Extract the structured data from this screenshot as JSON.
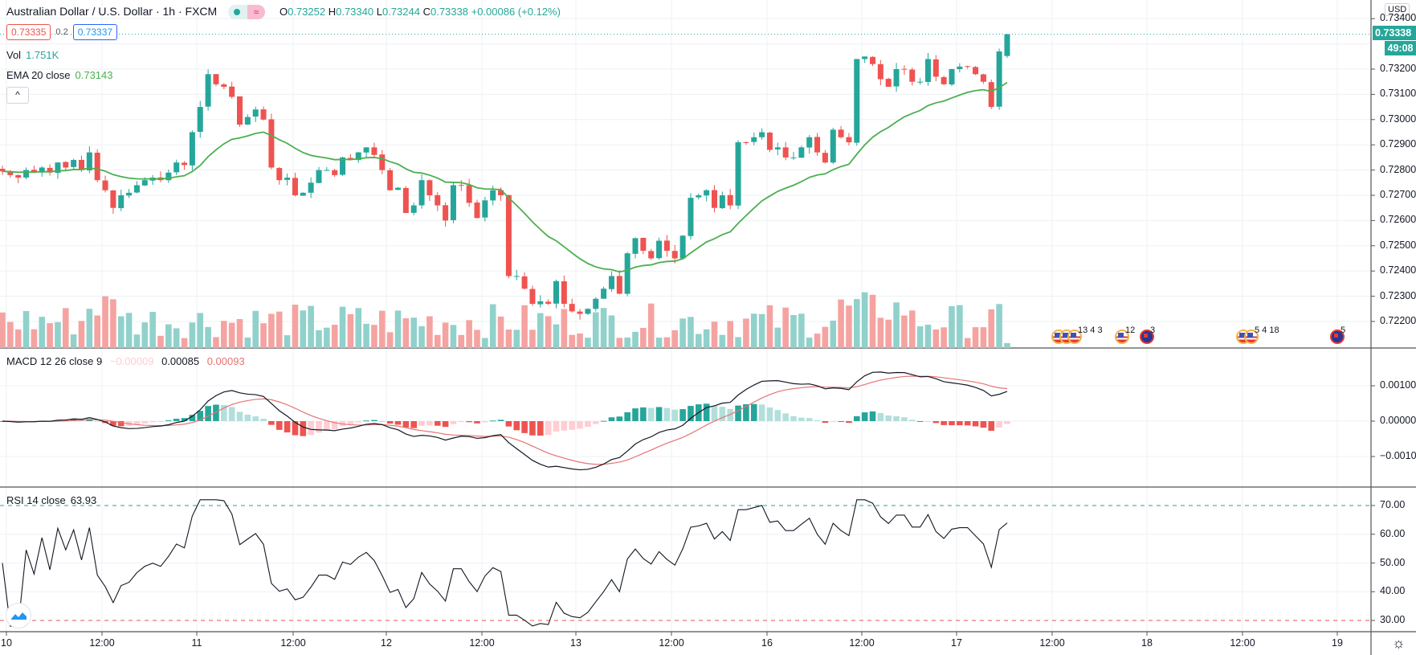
{
  "header": {
    "symbol_title": "Australian Dollar / U.S. Dollar · 1h · FXCM",
    "market_status_icon": "market-open-dot-icon",
    "data_delay_icon": "wave-approx-icon",
    "ohlc": {
      "o_label": "O",
      "o": "0.73252",
      "h_label": "H",
      "h": "0.73340",
      "l_label": "L",
      "l": "0.73244",
      "c_label": "C",
      "c": "0.73338",
      "change": "+0.00086 (+0.12%)"
    },
    "bid": "0.73335",
    "spread": "0.2",
    "ask": "0.73337"
  },
  "indicators": {
    "volume": {
      "label": "Vol",
      "value": "1.751K"
    },
    "ema": {
      "label": "EMA 20 close",
      "value": "0.73143"
    },
    "macd": {
      "label": "MACD 12 26 close 9",
      "hist": "−0.00009",
      "macd": "0.00085",
      "signal": "0.00093"
    },
    "rsi": {
      "label": "RSI 14 close",
      "value": "63.93"
    }
  },
  "collapse_label": "^",
  "price_axis": {
    "currency": "USD",
    "ticks": [
      "0.73400",
      "0.73200",
      "0.73100",
      "0.73000",
      "0.72900",
      "0.72800",
      "0.72700",
      "0.72600",
      "0.72500",
      "0.72400",
      "0.72300",
      "0.72200"
    ],
    "last_price": "0.73338",
    "countdown": "49:08"
  },
  "macd_axis": {
    "ticks": [
      "0.00100",
      "0.00000",
      "−0.00100"
    ]
  },
  "rsi_axis": {
    "ticks": [
      "70.00",
      "60.00",
      "50.00",
      "40.00",
      "30.00"
    ]
  },
  "time_axis": {
    "ticks": [
      "10",
      "12:00",
      "11",
      "12:00",
      "12",
      "12:00",
      "13",
      "12:00",
      "16",
      "12:00",
      "17",
      "12:00",
      "18",
      "12:00",
      "19"
    ]
  },
  "events": [
    {
      "flags": [
        "us",
        "us",
        "us"
      ],
      "label": "13 4  3"
    },
    {
      "flags": [
        "us"
      ],
      "label": "12"
    },
    {
      "flags": [
        "au"
      ],
      "label": "3"
    },
    {
      "flags": [
        "us",
        "us"
      ],
      "label": "5  4  18"
    },
    {
      "flags": [
        "au"
      ],
      "label": "5"
    }
  ],
  "colors": {
    "up": "#26a69a",
    "down": "#ef5350",
    "vol_up": "#91d1cb",
    "vol_down": "#f5a3a1",
    "ema": "#4caf50",
    "macd": "#131722",
    "signal": "#e57373",
    "hist_up_strong": "#26a69a",
    "hist_up_weak": "#b2dfdb",
    "hist_down_strong": "#ef5350",
    "hist_down_weak": "#ffcdd2",
    "grid": "#eef0f3",
    "rsi_upper": "#26a69a",
    "rsi_lower": "#ef5350"
  },
  "chart_data": {
    "type": "candlestick",
    "title": "Australian Dollar / U.S. Dollar · 1h · FXCM",
    "xlabel": "",
    "ylabel": "USD",
    "ylim": [
      0.7216,
      0.7342
    ],
    "closes": [
      0.72795,
      0.7278,
      0.7277,
      0.728,
      0.7279,
      0.7281,
      0.7279,
      0.7283,
      0.7281,
      0.7284,
      0.728,
      0.7287,
      0.7276,
      0.7272,
      0.7265,
      0.727,
      0.7271,
      0.7274,
      0.7276,
      0.7277,
      0.7276,
      0.7279,
      0.7283,
      0.7282,
      0.7295,
      0.7305,
      0.7318,
      0.7314,
      0.7313,
      0.7309,
      0.7298,
      0.7301,
      0.7304,
      0.73,
      0.7281,
      0.7276,
      0.7277,
      0.727,
      0.7271,
      0.7275,
      0.728,
      0.728,
      0.7278,
      0.7285,
      0.7284,
      0.7287,
      0.7289,
      0.7286,
      0.728,
      0.7272,
      0.7273,
      0.7263,
      0.7266,
      0.7276,
      0.727,
      0.7266,
      0.726,
      0.7274,
      0.7274,
      0.7267,
      0.7261,
      0.7268,
      0.7272,
      0.727,
      0.7238,
      0.7238,
      0.7233,
      0.7227,
      0.7228,
      0.7227,
      0.7236,
      0.7227,
      0.7224,
      0.7223,
      0.7225,
      0.7229,
      0.7233,
      0.7238,
      0.7231,
      0.7247,
      0.7253,
      0.7248,
      0.7245,
      0.7252,
      0.7248,
      0.7245,
      0.7254,
      0.7269,
      0.727,
      0.7272,
      0.7265,
      0.727,
      0.7266,
      0.7291,
      0.7291,
      0.7293,
      0.7295,
      0.7288,
      0.7289,
      0.7285,
      0.7285,
      0.7289,
      0.7293,
      0.7287,
      0.7283,
      0.7296,
      0.7293,
      0.7291,
      0.7324,
      0.7325,
      0.7322,
      0.7316,
      0.7313,
      0.732,
      0.732,
      0.7315,
      0.7315,
      0.7324,
      0.7317,
      0.7314,
      0.732,
      0.7321,
      0.7321,
      0.7318,
      0.7315,
      0.7305,
      0.7327,
      0.73338
    ],
    "ema20_last": 0.73143,
    "volume_last": 1751,
    "macd_last": 0.00085,
    "signal_last": 0.00093,
    "hist_last": -9e-05,
    "rsi_last": 63.93,
    "rsi_levels": [
      30,
      70
    ],
    "macd_ylim": [
      -0.0013,
      0.0016
    ],
    "rsi_ylim": [
      27,
      72
    ]
  }
}
